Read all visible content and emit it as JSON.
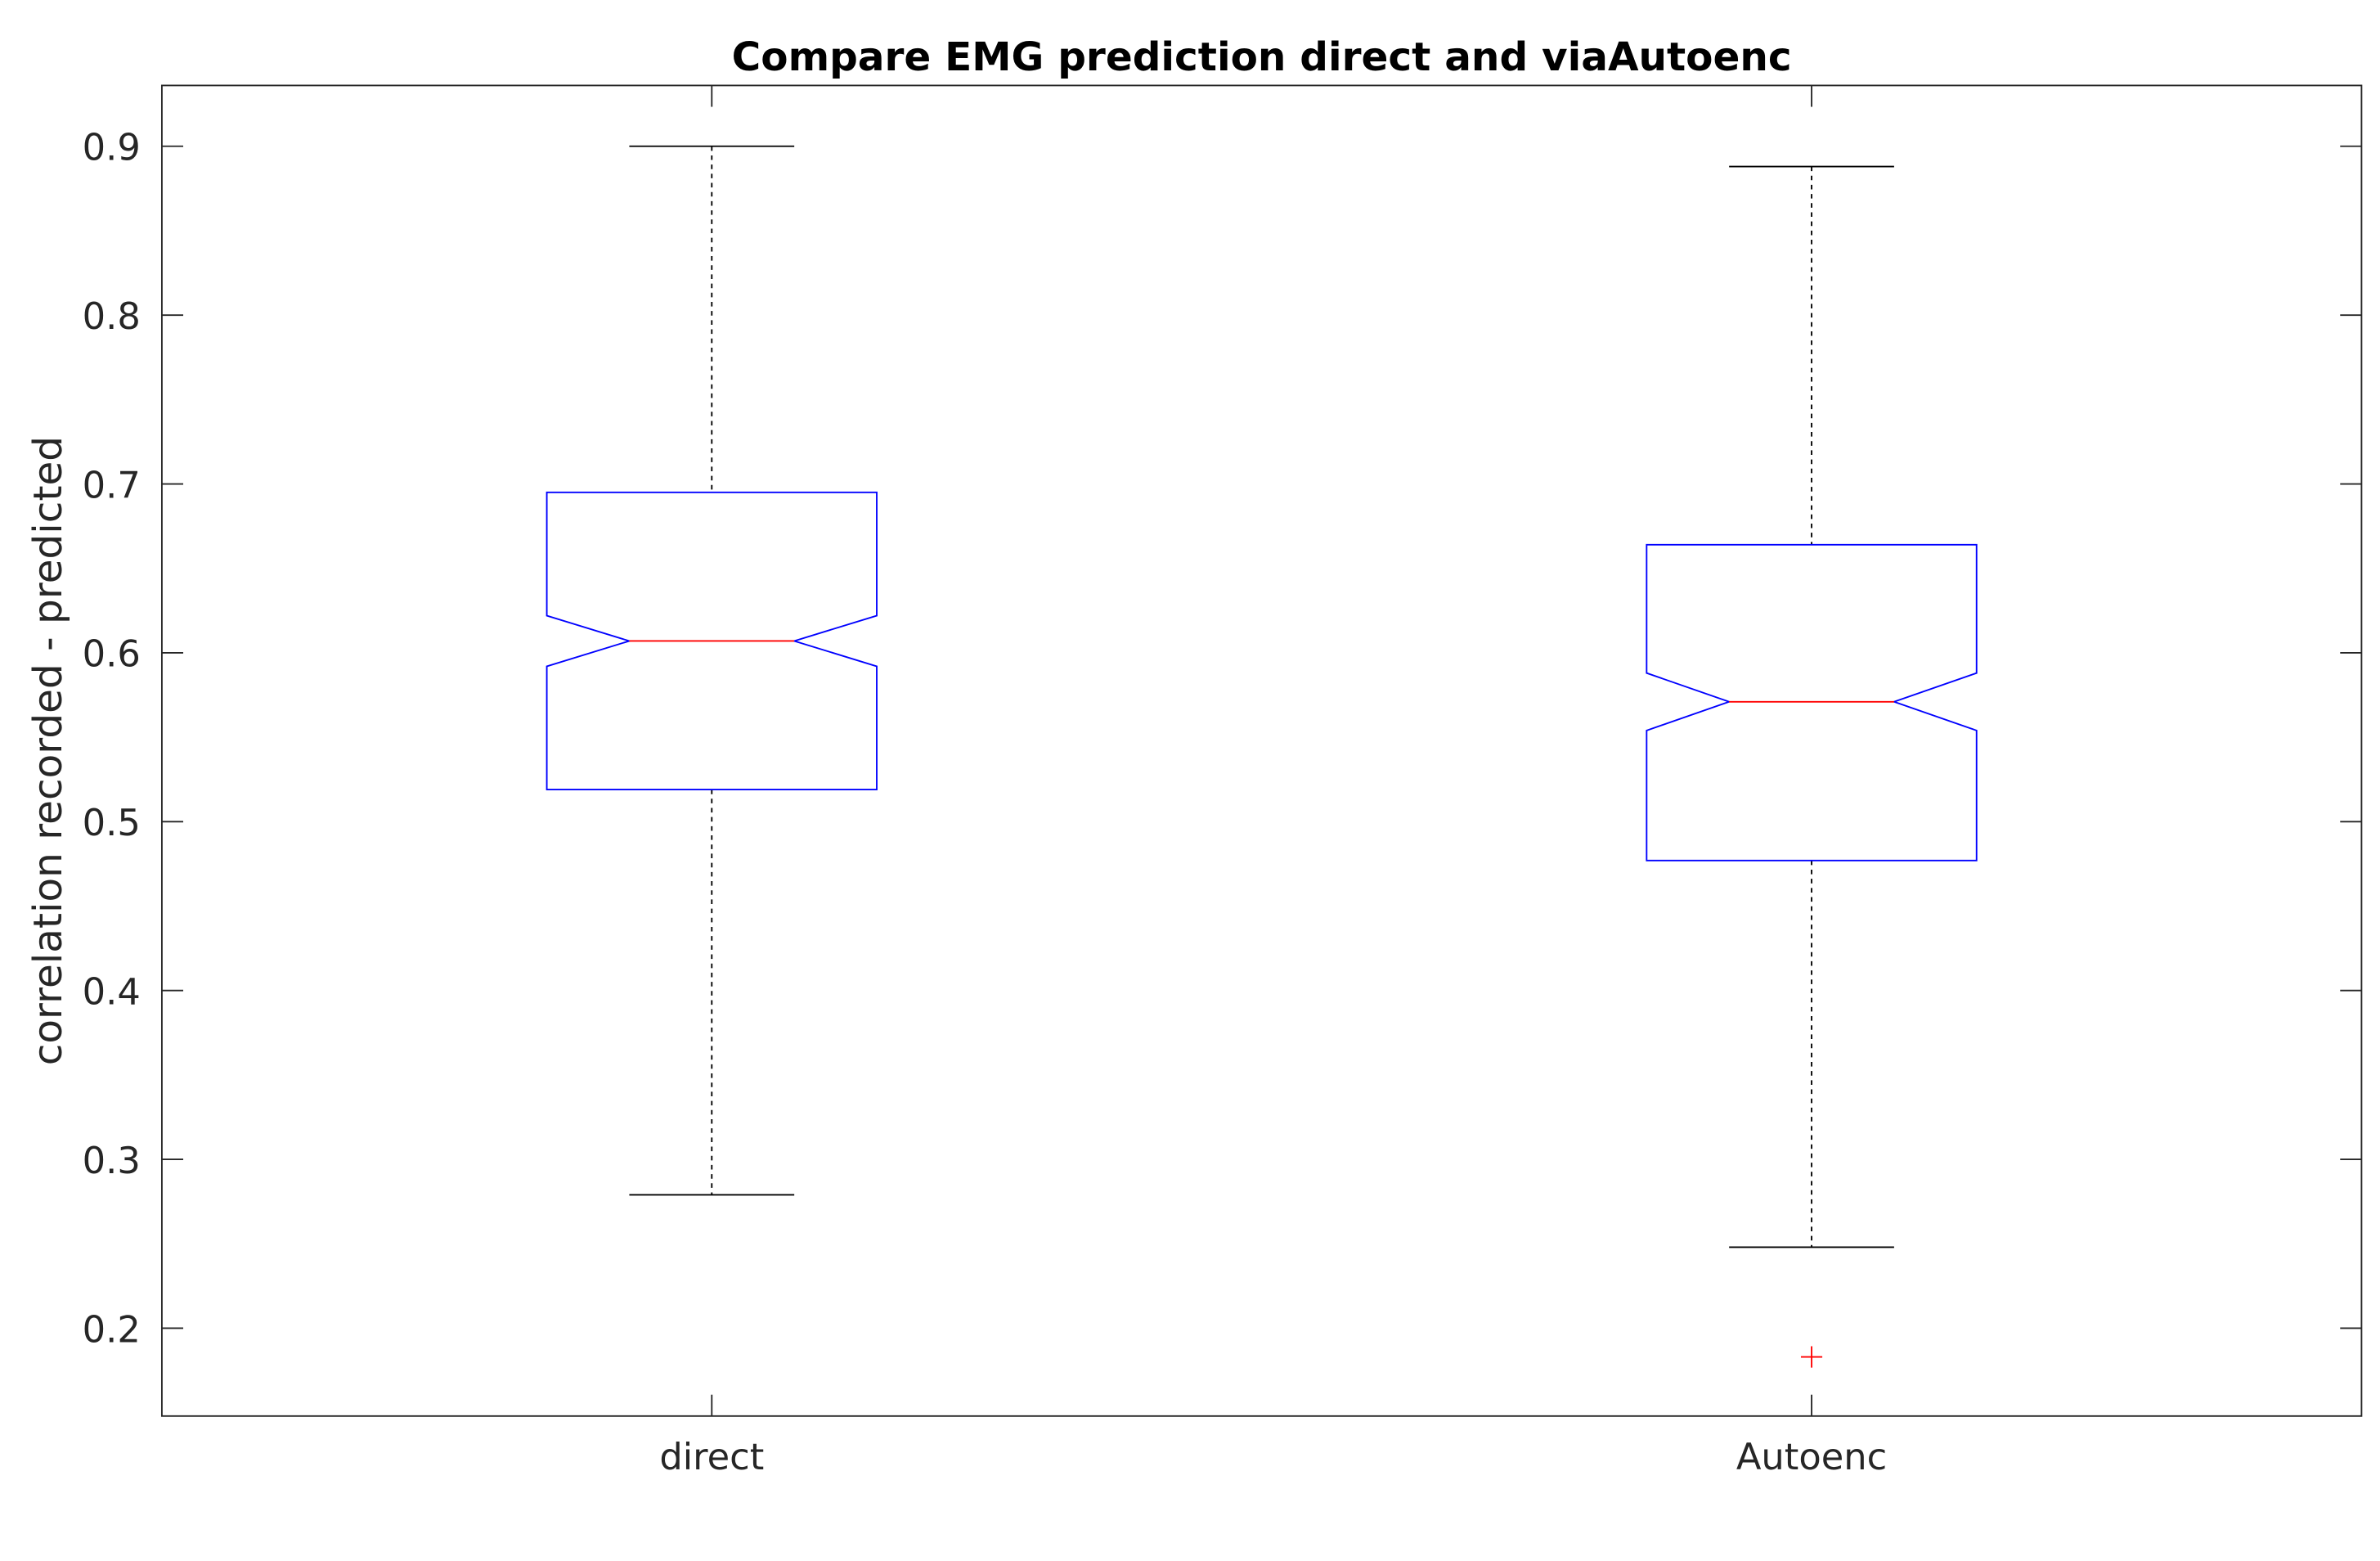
{
  "chart_data": {
    "type": "box",
    "title": "Compare EMG prediction direct and viaAutoenc",
    "xlabel": "",
    "ylabel": "correlation recorded - predicted",
    "categories": [
      "direct",
      "Autoenc"
    ],
    "ylim": [
      0.148,
      0.936
    ],
    "xlim": [
      0.5,
      2.5
    ],
    "yticks": [
      0.2,
      0.3,
      0.4,
      0.5,
      0.6,
      0.7,
      0.8,
      0.9
    ],
    "ytick_labels": [
      "0.2",
      "0.3",
      "0.4",
      "0.5",
      "0.6",
      "0.7",
      "0.8",
      "0.9"
    ],
    "grid": false,
    "notched": true,
    "boxes": [
      {
        "name": "direct",
        "whisker_low": 0.279,
        "q1": 0.519,
        "median": 0.607,
        "q3": 0.695,
        "whisker_high": 0.9,
        "notch_low": 0.592,
        "notch_high": 0.622,
        "outliers": []
      },
      {
        "name": "Autoenc",
        "whisker_low": 0.248,
        "q1": 0.477,
        "median": 0.571,
        "q3": 0.664,
        "whisker_high": 0.888,
        "notch_low": 0.554,
        "notch_high": 0.588,
        "outliers": [
          0.183
        ]
      }
    ],
    "colors": {
      "box": "#0000ff",
      "median": "#ff0000",
      "whisker": "#000000",
      "outlier": "#ff0000",
      "axes": "#262626"
    }
  }
}
